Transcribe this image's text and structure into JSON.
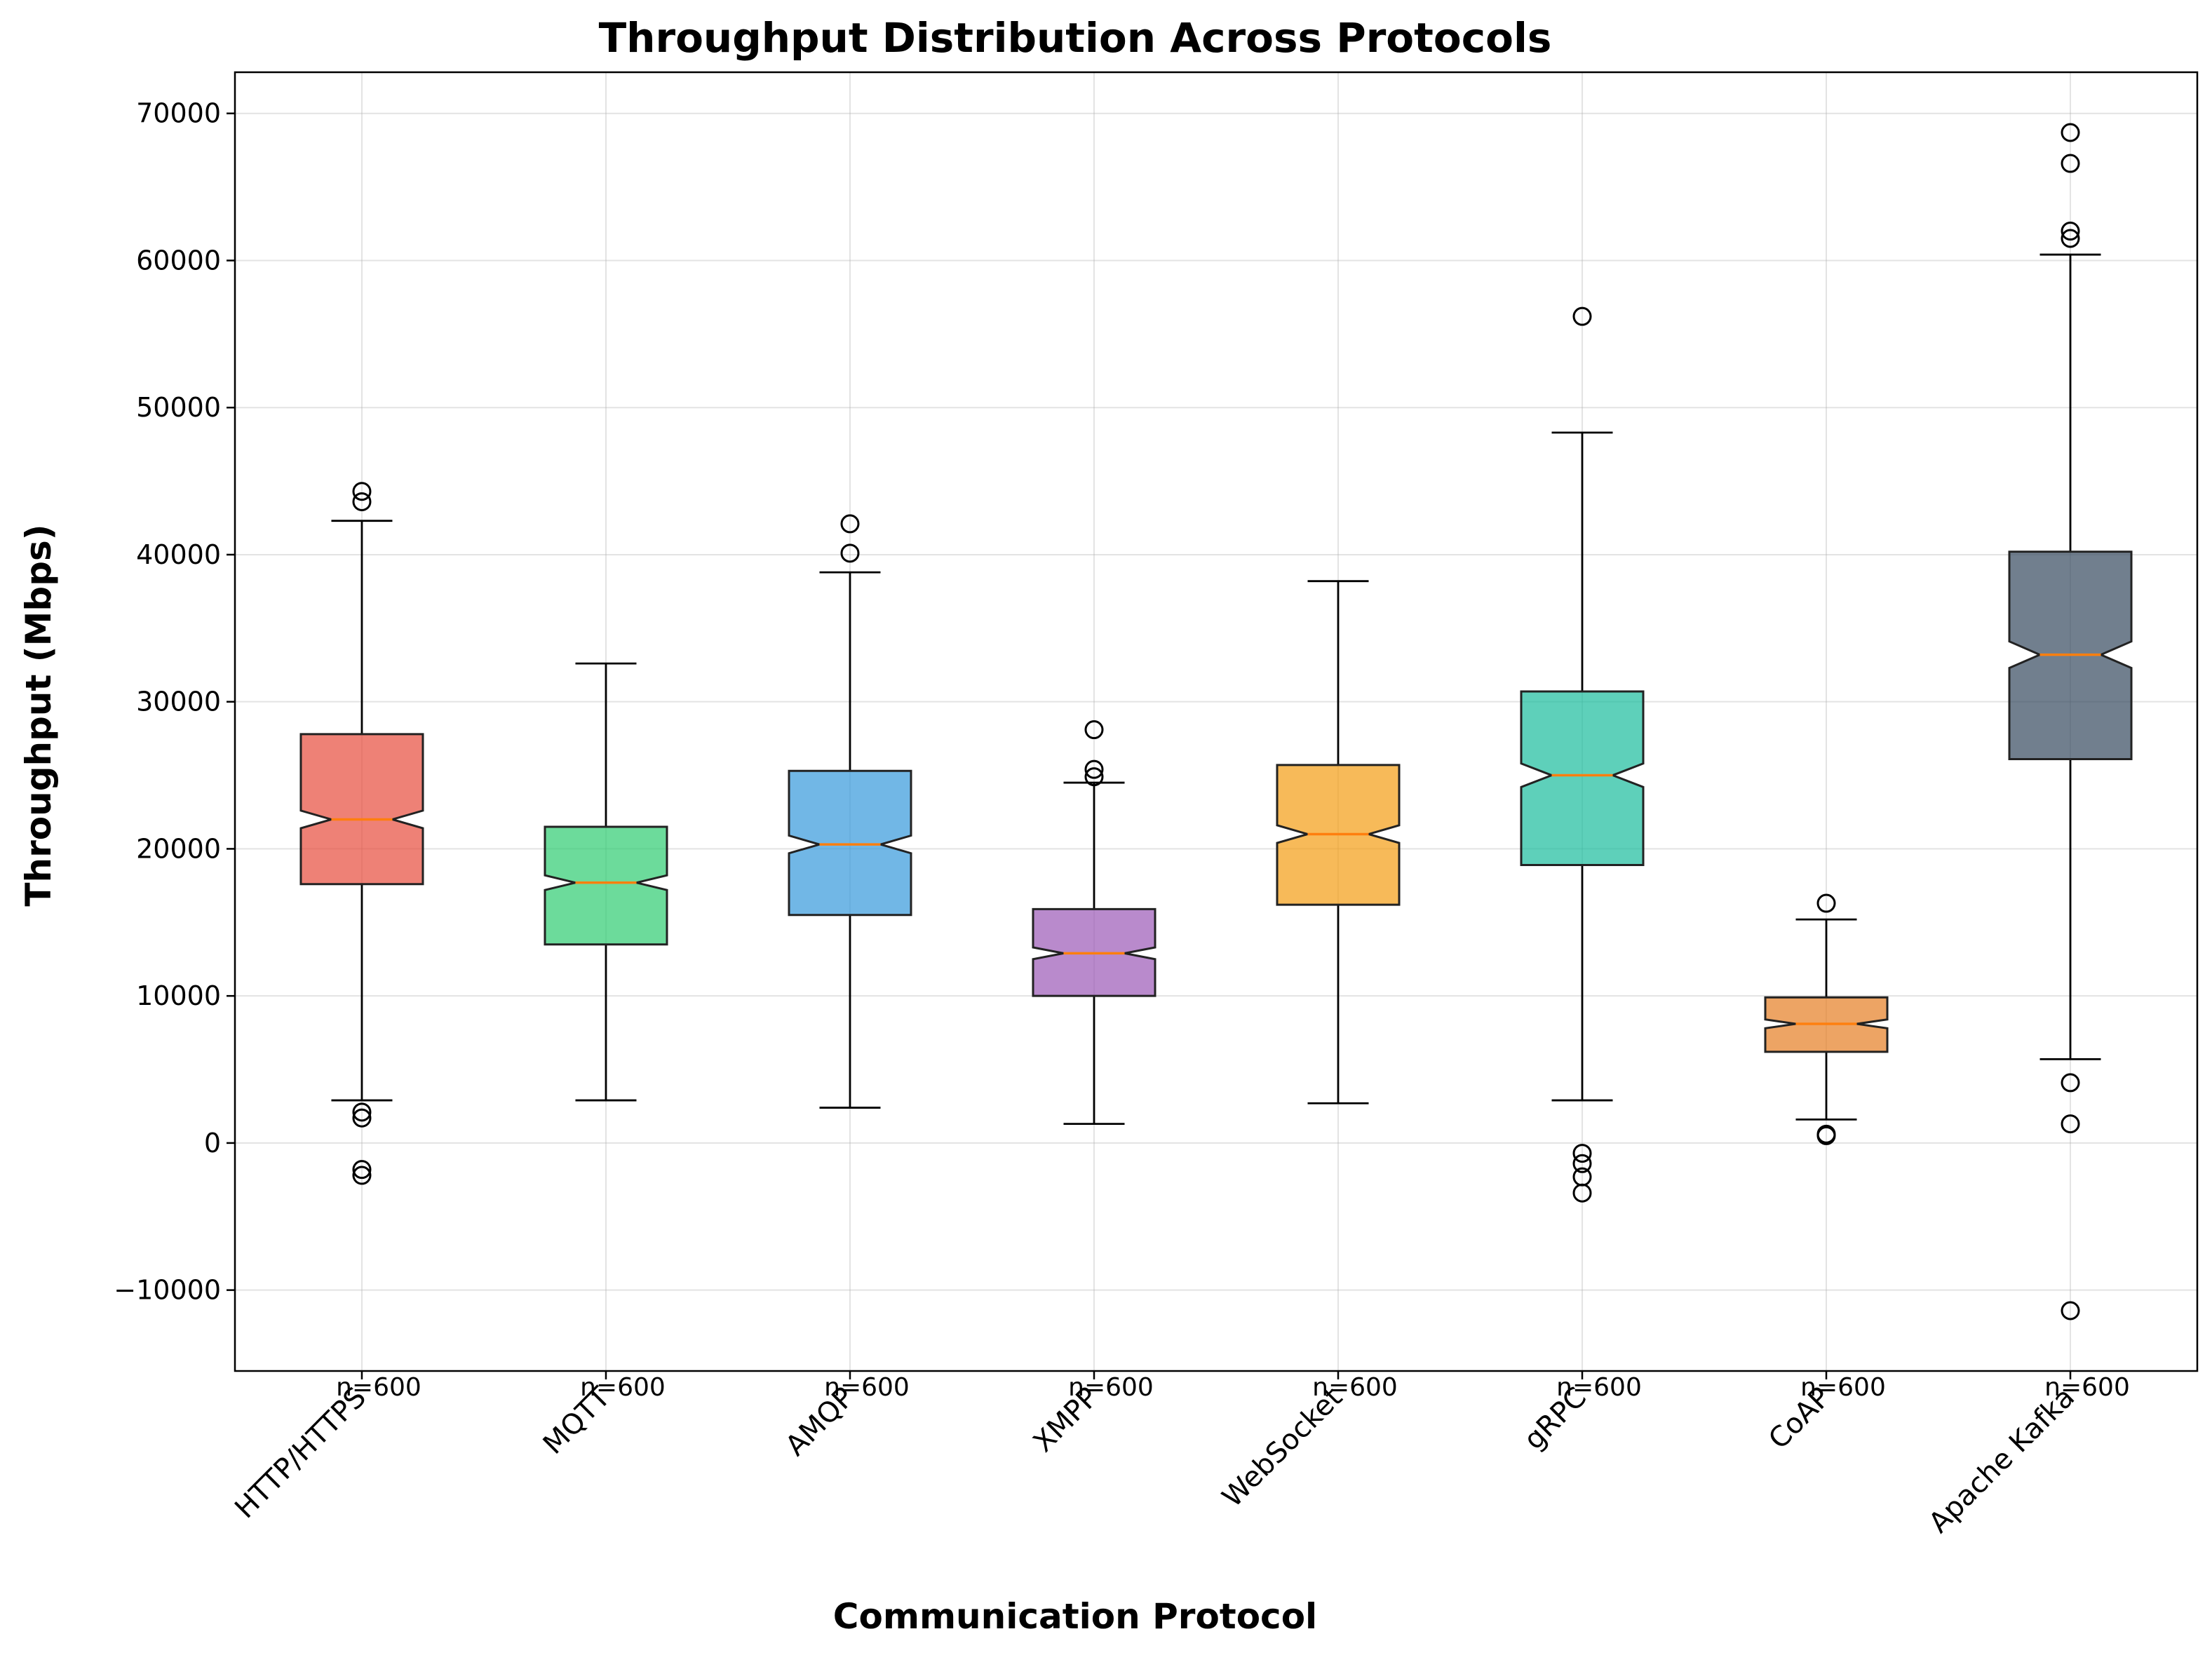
{
  "chart_data": {
    "type": "box",
    "title": "Throughput Distribution Across Protocols",
    "xlabel": "Communication Protocol",
    "ylabel": "Throughput (Mbps)",
    "ylim": [
      -15500,
      72800
    ],
    "yticks": [
      -10000,
      0,
      10000,
      20000,
      30000,
      40000,
      50000,
      60000,
      70000
    ],
    "yticklabels": [
      "−10000",
      "0",
      "10000",
      "20000",
      "30000",
      "40000",
      "50000",
      "60000",
      "70000"
    ],
    "grid": true,
    "notched": true,
    "categories": [
      "HTTP/HTTPS",
      "MQTT",
      "AMQP",
      "XMPP",
      "WebSocket",
      "gRPC",
      "CoAP",
      "Apache Kafka"
    ],
    "boxes": [
      {
        "name": "HTTP/HTTPS",
        "q1": 17600,
        "median": 22000,
        "q3": 27800,
        "whisker_low": 2900,
        "whisker_high": 42300,
        "notch_low": 21400,
        "notch_high": 22600,
        "outliers": [
          44300,
          43600,
          2100,
          1700,
          -1800,
          -2200
        ],
        "n_label": "n=600",
        "color": "#e74c3c"
      },
      {
        "name": "MQTT",
        "q1": 13500,
        "median": 17700,
        "q3": 21500,
        "whisker_low": 2900,
        "whisker_high": 32600,
        "notch_low": 17200,
        "notch_high": 18200,
        "outliers": [],
        "n_label": "n=600",
        "color": "#2ecc71"
      },
      {
        "name": "AMQP",
        "q1": 15500,
        "median": 20300,
        "q3": 25300,
        "whisker_low": 2400,
        "whisker_high": 38800,
        "notch_low": 19700,
        "notch_high": 20900,
        "outliers": [
          42100,
          40100
        ],
        "n_label": "n=600",
        "color": "#3498db"
      },
      {
        "name": "XMPP",
        "q1": 10000,
        "median": 12900,
        "q3": 15900,
        "whisker_low": 1300,
        "whisker_high": 24500,
        "notch_low": 12500,
        "notch_high": 13300,
        "outliers": [
          28100,
          25400,
          24900
        ],
        "n_label": "n=600",
        "color": "#9b59b6"
      },
      {
        "name": "WebSocket",
        "q1": 16200,
        "median": 21000,
        "q3": 25700,
        "whisker_low": 2700,
        "whisker_high": 38200,
        "notch_low": 20400,
        "notch_high": 21600,
        "outliers": [],
        "n_label": "n=600",
        "color": "#f39c12"
      },
      {
        "name": "gRPC",
        "q1": 18900,
        "median": 25000,
        "q3": 30700,
        "whisker_low": 2900,
        "whisker_high": 48300,
        "notch_low": 24200,
        "notch_high": 25800,
        "outliers": [
          56200,
          -700,
          -1400,
          -2300,
          -3400
        ],
        "n_label": "n=600",
        "color": "#1abc9c"
      },
      {
        "name": "CoAP",
        "q1": 6200,
        "median": 8100,
        "q3": 9900,
        "whisker_low": 1600,
        "whisker_high": 15200,
        "notch_low": 7800,
        "notch_high": 8400,
        "outliers": [
          16300,
          600,
          500
        ],
        "n_label": "n=600",
        "color": "#e67e22"
      },
      {
        "name": "Apache Kafka",
        "q1": 26100,
        "median": 33200,
        "q3": 40200,
        "whisker_low": 5700,
        "whisker_high": 60400,
        "notch_low": 32300,
        "notch_high": 34100,
        "outliers": [
          68700,
          66600,
          62000,
          61500,
          4100,
          1300,
          -11400
        ],
        "n_label": "n=600",
        "color": "#34495e"
      }
    ],
    "median_color": "#ff7f0e"
  }
}
